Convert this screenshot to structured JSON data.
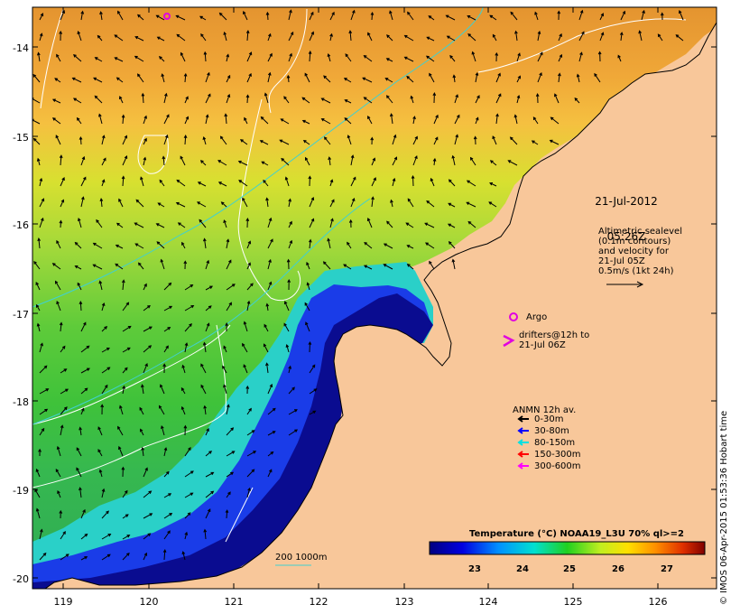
{
  "map": {
    "y_ticks": [
      "-14",
      "-15",
      "-16",
      "-17",
      "-18",
      "-19",
      "-20"
    ],
    "x_ticks": [
      "119",
      "120",
      "121",
      "122",
      "123",
      "124",
      "125",
      "126"
    ],
    "lon_range": [
      118.65,
      126.7
    ],
    "lat_range": [
      -20.12,
      -13.6
    ]
  },
  "annotations": {
    "date_line1": "21-Jul-2012",
    "date_line2": "05:26Z",
    "altimetry": "Altimetric sealevel\n(0.1m contours)\nand velocity for\n21-Jul 05Z\n0.5m/s (1kt 24h)",
    "argo": "Argo",
    "drifters": "drifters@12h to\n21-Jul 06Z",
    "anmn_title": "ANMN 12h av.",
    "anmn_items": [
      {
        "label": "0-30m",
        "color": "#000000"
      },
      {
        "label": "30-80m",
        "color": "#0000ff"
      },
      {
        "label": "80-150m",
        "color": "#00e0e0"
      },
      {
        "label": "150-300m",
        "color": "#ff0000"
      },
      {
        "label": "300-600m",
        "color": "#ff00ff"
      }
    ],
    "depth_contours": "200  1000m",
    "credit": "© IMOS 06-Apr-2015 01:53:36 Hobart time"
  },
  "colorbar": {
    "title": "Temperature (°C) NOAA19_L3U 70% ql>=2",
    "ticks": [
      "23",
      "24",
      "25",
      "26",
      "27"
    ],
    "range": [
      21.8,
      27.8
    ]
  },
  "colors": {
    "land": "#f8c79a",
    "argo": "#e000e0",
    "contour_white": "#ffffff",
    "contour_cyan": "#40d0d0"
  }
}
